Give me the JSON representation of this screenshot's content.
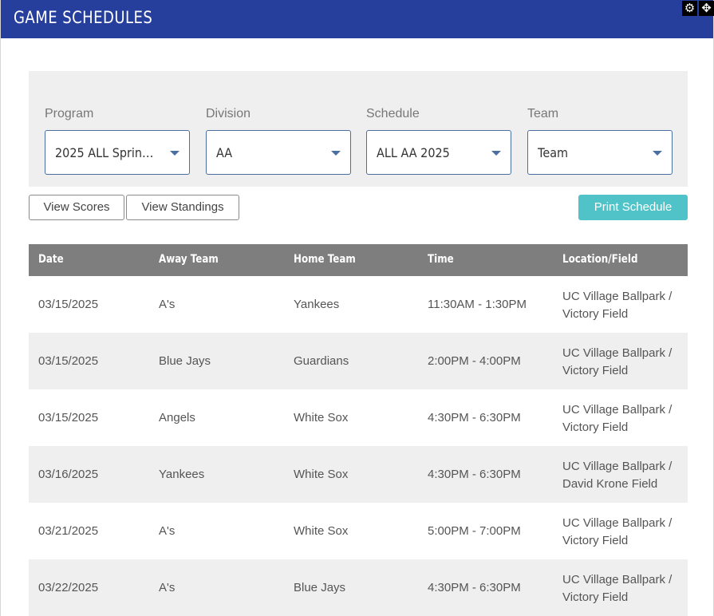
{
  "header": {
    "title": "GAME SCHEDULES",
    "settings_icon": "gear-icon",
    "move_icon": "move-arrows-icon"
  },
  "filters": [
    {
      "label": "Program",
      "value": "2025 ALL Spring S..."
    },
    {
      "label": "Division",
      "value": "AA"
    },
    {
      "label": "Schedule",
      "value": "ALL AA 2025"
    },
    {
      "label": "Team",
      "value": "Team"
    }
  ],
  "buttons": {
    "view_scores": "View Scores",
    "view_standings": "View Standings",
    "print_schedule": "Print Schedule"
  },
  "table": {
    "headers": [
      "Date",
      "Away Team",
      "Home Team",
      "Time",
      "Location/Field"
    ],
    "rows": [
      [
        "03/15/2025",
        "A's",
        "Yankees",
        "11:30AM - 1:30PM",
        "UC Village Ballpark / Victory Field"
      ],
      [
        "03/15/2025",
        "Blue Jays",
        "Guardians",
        "2:00PM - 4:00PM",
        "UC Village Ballpark / Victory Field"
      ],
      [
        "03/15/2025",
        "Angels",
        "White Sox",
        "4:30PM - 6:30PM",
        "UC Village Ballpark / Victory Field"
      ],
      [
        "03/16/2025",
        "Yankees",
        "White Sox",
        "4:30PM - 6:30PM",
        "UC Village Ballpark / David Krone Field"
      ],
      [
        "03/21/2025",
        "A's",
        "White Sox",
        "5:00PM - 7:00PM",
        "UC Village Ballpark / Victory Field"
      ],
      [
        "03/22/2025",
        "A's",
        "Blue Jays",
        "4:30PM - 6:30PM",
        "UC Village Ballpark / Victory Field"
      ]
    ]
  },
  "colors": {
    "header_bg": "#263e9c",
    "print_button": "#4fc3c8",
    "table_header_bg": "#7e7e7e",
    "row_alt_bg": "#efefef"
  }
}
